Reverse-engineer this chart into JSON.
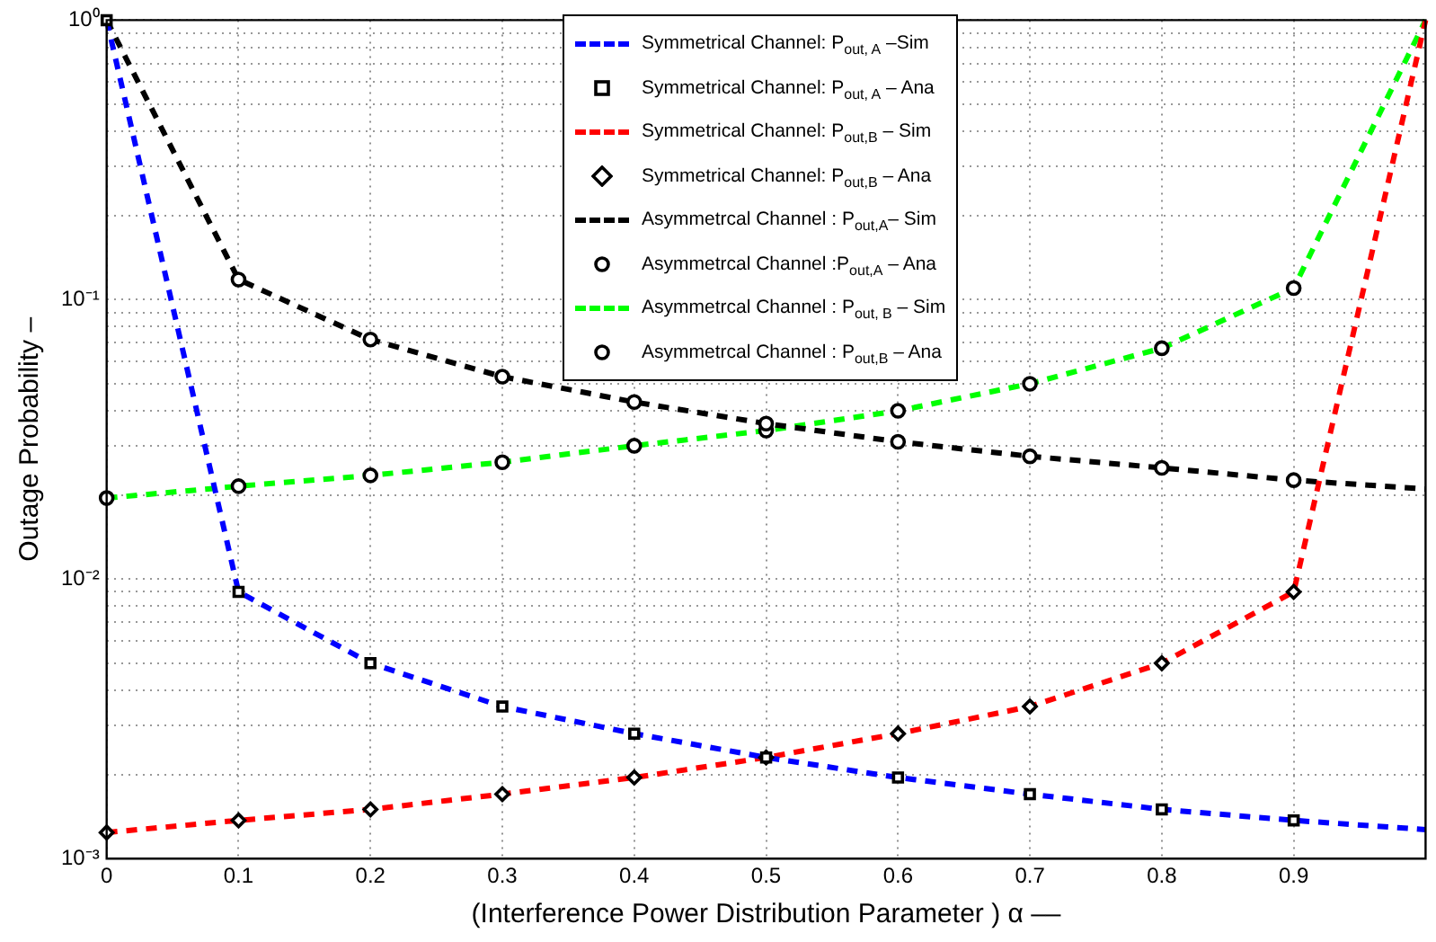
{
  "chart_data": {
    "type": "line",
    "xlabel": "(Interference Power Distribution Parameter ) α ––",
    "ylabel": "Outage Probability –",
    "x": [
      0,
      0.1,
      0.2,
      0.3,
      0.4,
      0.5,
      0.6,
      0.7,
      0.8,
      0.9,
      1.0
    ],
    "xlim": [
      0,
      1
    ],
    "xticks": [
      0,
      0.1,
      0.2,
      0.3,
      0.4,
      0.5,
      0.6,
      0.7,
      0.8,
      0.9
    ],
    "log": "y",
    "ylim": [
      0.001,
      1
    ],
    "yticks": [
      {
        "value": 0.001,
        "label": "10⁻³"
      },
      {
        "value": 0.002,
        "label": null
      },
      {
        "value": 0.003,
        "label": null
      },
      {
        "value": 0.004,
        "label": null
      },
      {
        "value": 0.005,
        "label": null
      },
      {
        "value": 0.006,
        "label": null
      },
      {
        "value": 0.007,
        "label": null
      },
      {
        "value": 0.008,
        "label": null
      },
      {
        "value": 0.009,
        "label": null
      },
      {
        "value": 0.01,
        "label": "10⁻²"
      },
      {
        "value": 0.02,
        "label": null
      },
      {
        "value": 0.03,
        "label": null
      },
      {
        "value": 0.04,
        "label": null
      },
      {
        "value": 0.05,
        "label": null
      },
      {
        "value": 0.06,
        "label": null
      },
      {
        "value": 0.07,
        "label": null
      },
      {
        "value": 0.08,
        "label": null
      },
      {
        "value": 0.09,
        "label": null
      },
      {
        "value": 0.1,
        "label": "10⁻¹"
      },
      {
        "value": 0.2,
        "label": null
      },
      {
        "value": 0.3,
        "label": null
      },
      {
        "value": 0.4,
        "label": null
      },
      {
        "value": 0.5,
        "label": null
      },
      {
        "value": 0.6,
        "label": null
      },
      {
        "value": 0.7,
        "label": null
      },
      {
        "value": 0.8,
        "label": null
      },
      {
        "value": 0.9,
        "label": null
      },
      {
        "value": 1,
        "label": "10⁰"
      }
    ],
    "grid": true,
    "legend": "top",
    "series": [
      {
        "name": "Symmetrical Channel:  P$_{out, A}$ –Sim",
        "color": "#0000ff",
        "line_style": "dashed",
        "marker": "none",
        "values": [
          1,
          0.009,
          0.005,
          0.0035,
          0.0028,
          0.0023,
          0.00195,
          0.0017,
          0.0015,
          0.00137,
          0.00127
        ]
      },
      {
        "name": "Symmetrical Channel: P$_{out, A}$ – Ana",
        "type": "scatter",
        "color": "#000000",
        "marker": "square",
        "x": [
          0,
          0.1,
          0.2,
          0.3,
          0.4,
          0.5,
          0.6,
          0.7,
          0.8,
          0.9
        ],
        "values": [
          1,
          0.009,
          0.005,
          0.0035,
          0.0028,
          0.0023,
          0.00195,
          0.0017,
          0.0015,
          0.00137
        ]
      },
      {
        "name": "Symmetrical Channel: P$_{out,B}$ – Sim",
        "color": "#ff0000",
        "line_style": "dashed",
        "marker": "none",
        "values": [
          0.00124,
          0.00137,
          0.0015,
          0.0017,
          0.00195,
          0.0023,
          0.0028,
          0.0035,
          0.005,
          0.009,
          1
        ]
      },
      {
        "name": "Symmetrical Channel: P$_{out,B}$ – Ana",
        "type": "scatter",
        "color": "#000000",
        "marker": "diamond",
        "x": [
          0,
          0.1,
          0.2,
          0.3,
          0.4,
          0.5,
          0.6,
          0.7,
          0.8,
          0.9
        ],
        "values": [
          0.00124,
          0.00137,
          0.0015,
          0.0017,
          0.00195,
          0.0023,
          0.0028,
          0.0035,
          0.005,
          0.009
        ]
      },
      {
        "name": "Asymmetrcal Channel : P$_{out,A}$– Sim",
        "color": "#000000",
        "line_style": "dashed",
        "marker": "none",
        "values": [
          1,
          0.118,
          0.072,
          0.053,
          0.043,
          0.036,
          0.031,
          0.0275,
          0.025,
          0.0226,
          0.021
        ]
      },
      {
        "name": "Asymmetrcal Channel :P$_{out,A}$ – Ana",
        "type": "scatter",
        "color": "#000000",
        "marker": "circle",
        "x": [
          0.1,
          0.2,
          0.3,
          0.4,
          0.5,
          0.6,
          0.7,
          0.8,
          0.9
        ],
        "values": [
          0.118,
          0.072,
          0.053,
          0.043,
          0.036,
          0.031,
          0.0275,
          0.025,
          0.0226
        ]
      },
      {
        "name": "Asymmetrcal Channel : P$_{out, B}$ – Sim",
        "color": "#00ff00",
        "line_style": "dashed",
        "marker": "none",
        "values": [
          0.0195,
          0.0215,
          0.0235,
          0.0262,
          0.03,
          0.034,
          0.04,
          0.05,
          0.067,
          0.11,
          1
        ]
      },
      {
        "name": "Asymmetrcal Channel : P$_{out,B}$ – Ana",
        "type": "scatter",
        "color": "#000000",
        "marker": "circle",
        "x": [
          0,
          0.1,
          0.2,
          0.3,
          0.4,
          0.5,
          0.6,
          0.7,
          0.8,
          0.9
        ],
        "values": [
          0.0195,
          0.0215,
          0.0235,
          0.0262,
          0.03,
          0.034,
          0.04,
          0.05,
          0.067,
          0.11
        ]
      }
    ]
  }
}
